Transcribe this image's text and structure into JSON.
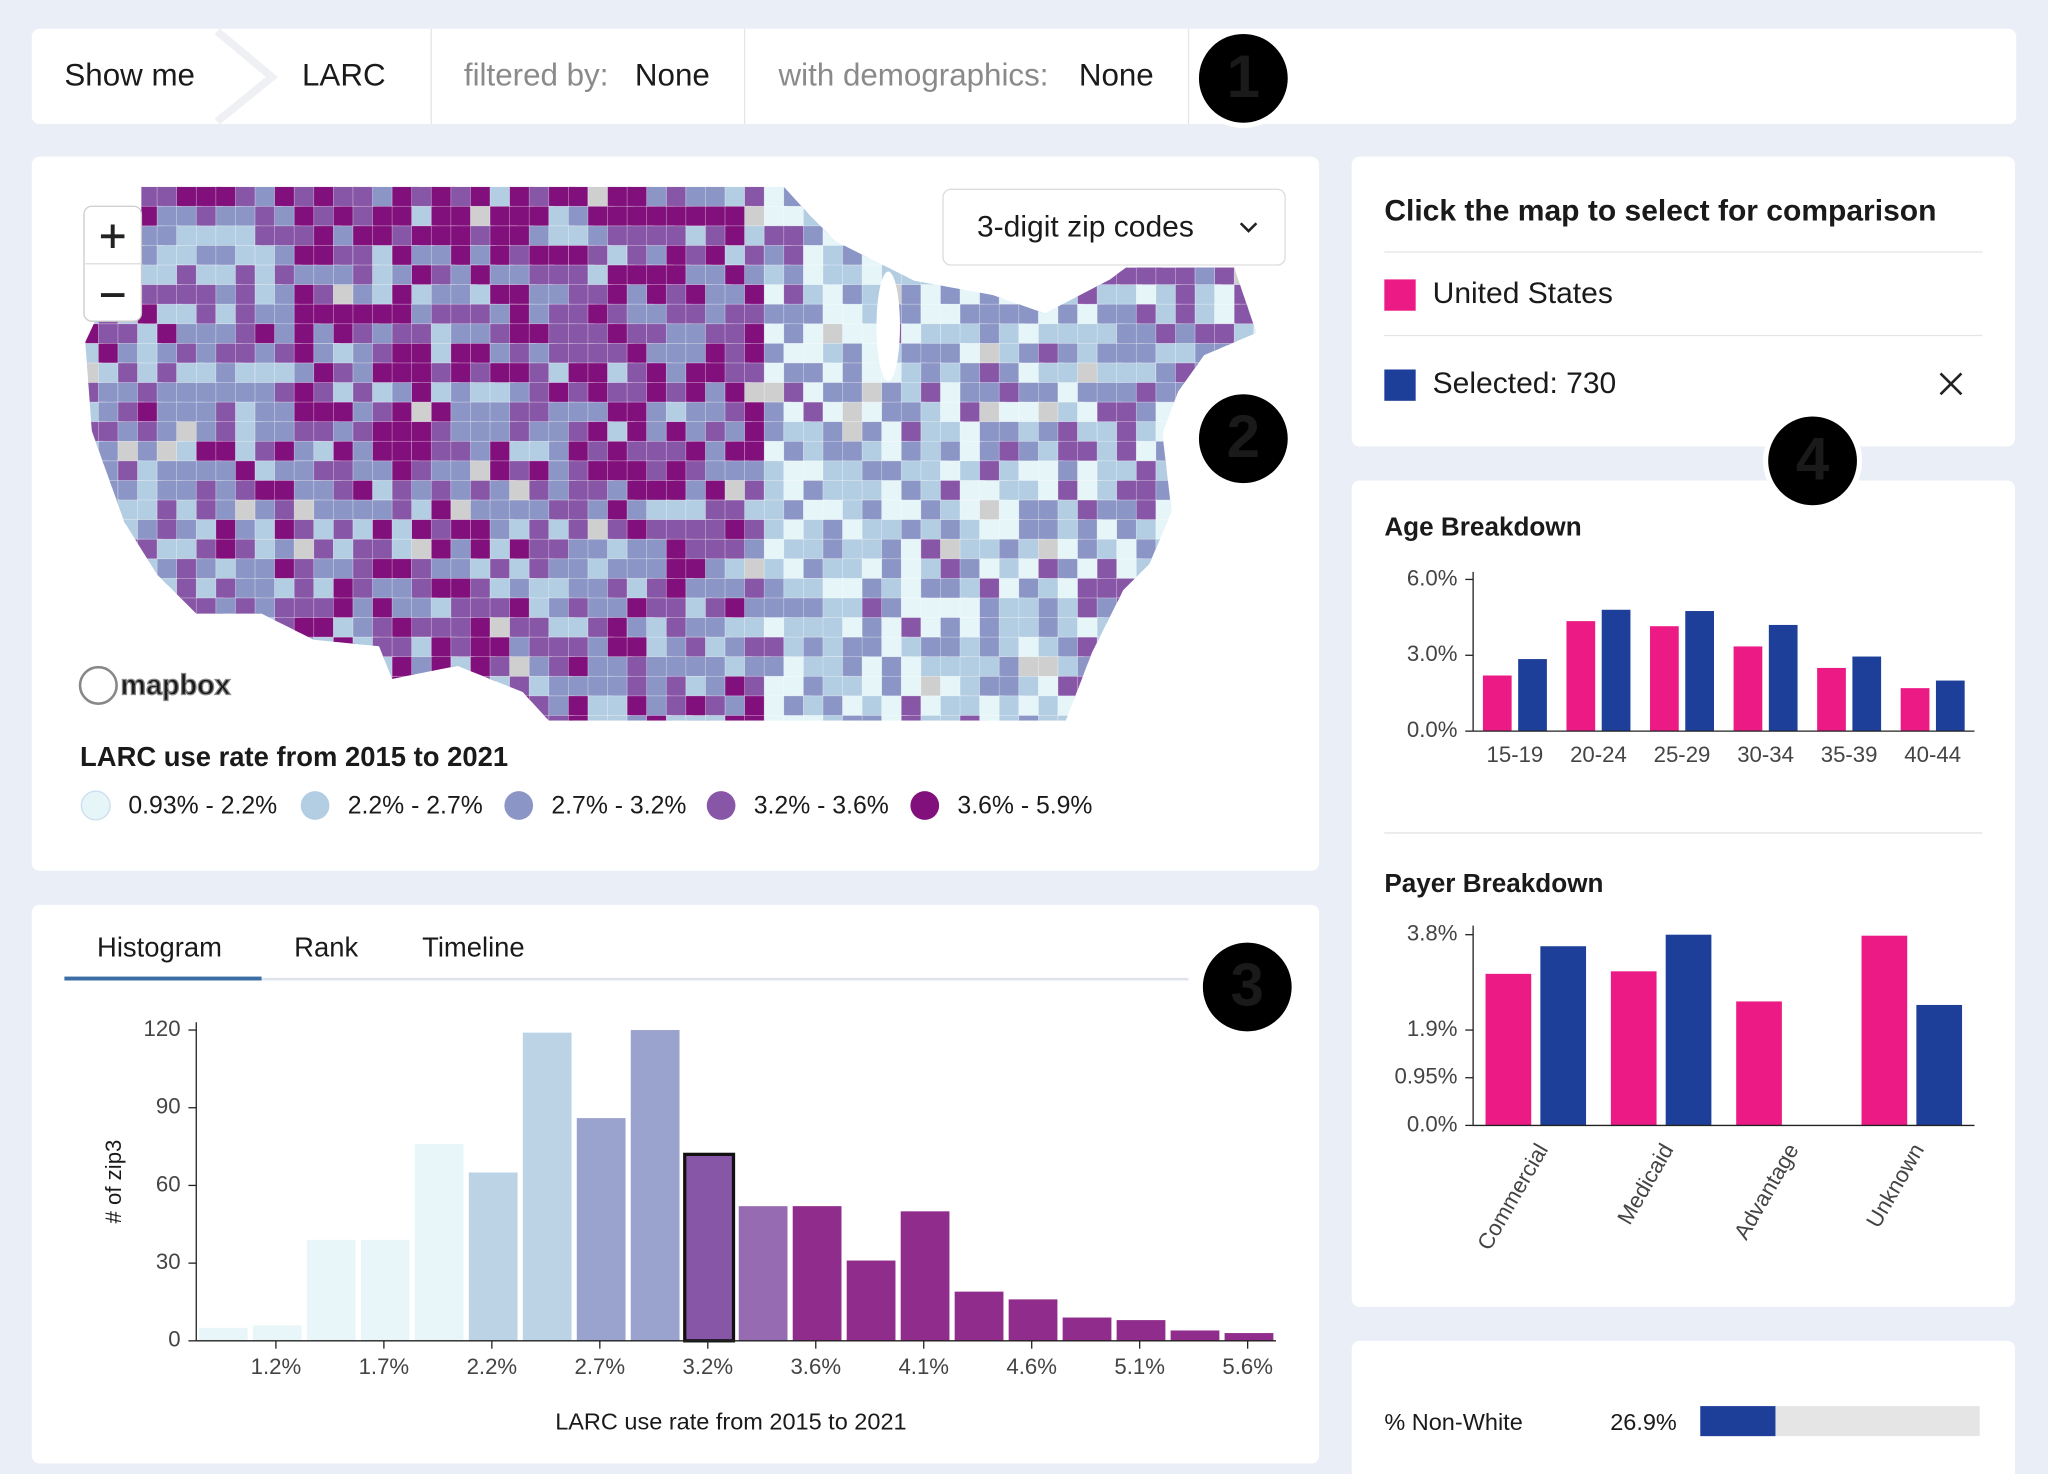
{
  "header": {
    "show_me": "Show me",
    "metric": "LARC",
    "filter_label": "filtered by:",
    "filter_value": "None",
    "demo_label": "with demographics:",
    "demo_value": "None"
  },
  "badges": [
    "1",
    "2",
    "3",
    "4"
  ],
  "map": {
    "level": "3-digit zip codes",
    "attribution": "mapbox",
    "legend_title": "LARC use rate from 2015 to 2021",
    "legend": [
      {
        "label": "0.93% - 2.2%",
        "color": "#e6f5f8"
      },
      {
        "label": "2.2% - 2.7%",
        "color": "#b3cde3"
      },
      {
        "label": "2.7% - 3.2%",
        "color": "#8c96c6"
      },
      {
        "label": "3.2% - 3.6%",
        "color": "#8856a7"
      },
      {
        "label": "3.6% - 5.9%",
        "color": "#810f7c"
      }
    ]
  },
  "comparison": {
    "title": "Click the map to select for comparison"
  },
  "tabs": {
    "items": [
      "Histogram",
      "Rank",
      "Timeline"
    ],
    "active": 0
  },
  "chart_data": [
    {
      "type": "histogram",
      "x_label": "LARC use rate from 2015 to 2021",
      "y_label": "# of zip3",
      "bins": [
        0.84,
        1.084,
        1.328,
        1.572,
        1.816,
        2.06,
        2.304,
        2.548,
        2.792,
        3.036,
        3.28,
        3.524,
        3.768,
        4.012,
        4.256,
        4.5,
        4.744,
        4.988,
        5.232,
        5.476,
        5.72
      ],
      "values": [
        5,
        6,
        39,
        39,
        76,
        65,
        119,
        86,
        120,
        72,
        52,
        52,
        31,
        50,
        19,
        16,
        9,
        8,
        4,
        3
      ],
      "colors": [
        "#e6f5f8",
        "#e6f5f8",
        "#e6f5f8",
        "#e6f5f8",
        "#e6f5f8",
        "#b3cde3",
        "#b3cde3",
        "#8c96c6",
        "#8c96c6",
        "#8856a7",
        "#8856a7",
        "#810f7c",
        "#810f7c",
        "#810f7c",
        "#810f7c",
        "#810f7c",
        "#810f7c",
        "#810f7c",
        "#810f7c",
        "#810f7c"
      ],
      "highlight": 9,
      "xlim": [
        0.84,
        5.72
      ],
      "xticks": [
        {
          "value": 1.2,
          "label": "1.2%"
        },
        {
          "value": 1.688,
          "label": "1.7%"
        },
        {
          "value": 2.176,
          "label": "2.2%"
        },
        {
          "value": 2.664,
          "label": "2.7%"
        },
        {
          "value": 3.152,
          "label": "3.2%"
        },
        {
          "value": 3.64,
          "label": "3.6%"
        },
        {
          "value": 4.128,
          "label": "4.1%"
        },
        {
          "value": 4.616,
          "label": "4.6%"
        },
        {
          "value": 5.104,
          "label": "5.1%"
        },
        {
          "value": 5.592,
          "label": "5.6%"
        }
      ],
      "ylim": [
        0,
        123
      ],
      "yticks": [
        0,
        30,
        60,
        90,
        120
      ]
    },
    {
      "type": "bar",
      "title": "Age Breakdown",
      "categories": [
        "15-19",
        "20-24",
        "25-29",
        "30-34",
        "35-39",
        "40-44"
      ],
      "series": [
        {
          "name": "United States",
          "color": "#ec1a84",
          "values": [
            2.2,
            4.35,
            4.15,
            3.35,
            2.5,
            1.7
          ]
        },
        {
          "name": "Selected: 730",
          "color": "#1e3f99",
          "values": [
            2.85,
            4.8,
            4.75,
            4.2,
            2.95,
            2.0
          ]
        }
      ],
      "ylim": [
        0,
        6.3
      ],
      "yticks": [
        {
          "value": 0,
          "label": "0.0%"
        },
        {
          "value": 3,
          "label": "3.0%"
        },
        {
          "value": 6,
          "label": "6.0%"
        }
      ]
    },
    {
      "type": "bar",
      "title": "Payer Breakdown",
      "categories": [
        "Commercial",
        "Medicaid",
        "Advantage",
        "Unknown"
      ],
      "series": [
        {
          "color": "#ec1a84",
          "values": [
            3.02,
            3.07,
            2.47,
            3.78
          ]
        },
        {
          "color": "#1e3f99",
          "values": [
            3.57,
            3.8,
            null,
            2.4
          ]
        }
      ],
      "ylim": [
        0,
        3.98
      ],
      "yticks": [
        {
          "value": 0,
          "label": "0.0%"
        },
        {
          "value": 0.95,
          "label": "0.95%"
        },
        {
          "value": 1.9,
          "label": "1.9%"
        },
        {
          "value": 3.8,
          "label": "3.8%"
        }
      ]
    },
    {
      "type": "progress",
      "categories": [
        "% Non-White"
      ],
      "values": [
        26.9
      ],
      "value_labels": [
        "26.9%"
      ],
      "xlim": [
        0,
        100
      ],
      "color": "#1e3f99"
    }
  ]
}
